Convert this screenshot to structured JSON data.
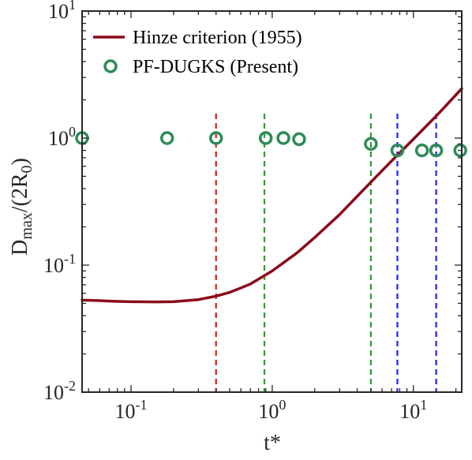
{
  "chart_data": {
    "type": "line",
    "xscale": "log",
    "yscale": "log",
    "xlim": [
      0.045,
      22
    ],
    "ylim": [
      0.01,
      10
    ],
    "xlabel": "t*",
    "ylabel": {
      "base": "D",
      "sub1": "max",
      "mid": "/(2R",
      "sub2": "0",
      "end": ")"
    },
    "x_ticks": [
      {
        "value": 0.1,
        "base": "10",
        "exp": "-1"
      },
      {
        "value": 1,
        "base": "10",
        "exp": "0"
      },
      {
        "value": 10,
        "base": "10",
        "exp": "1"
      }
    ],
    "y_ticks": [
      {
        "value": 0.01,
        "base": "10",
        "exp": "-2"
      },
      {
        "value": 0.1,
        "base": "10",
        "exp": "-1"
      },
      {
        "value": 1,
        "base": "10",
        "exp": "0"
      },
      {
        "value": 10,
        "base": "10",
        "exp": "1"
      }
    ],
    "legend_position": "top-left",
    "series": [
      {
        "name": "Hinze criterion (1955)",
        "kind": "line",
        "color": "#8B0A1A",
        "x": [
          0.045,
          0.06,
          0.08,
          0.1,
          0.15,
          0.2,
          0.3,
          0.4,
          0.5,
          0.7,
          1.0,
          1.5,
          2.0,
          3.0,
          5.0,
          7.0,
          10.0,
          15.0,
          22.0
        ],
        "y": [
          0.053,
          0.0525,
          0.0518,
          0.0515,
          0.0513,
          0.0515,
          0.0535,
          0.057,
          0.061,
          0.071,
          0.09,
          0.125,
          0.165,
          0.25,
          0.45,
          0.66,
          0.98,
          1.55,
          2.45
        ]
      },
      {
        "name": "PF-DUGKS (Present)",
        "kind": "scatter",
        "color": "#2E8B57",
        "x": [
          0.045,
          0.18,
          0.4,
          0.9,
          1.2,
          1.55,
          5.0,
          7.7,
          11.5,
          14.5,
          21.5
        ],
        "y": [
          1.0,
          1.0,
          1.0,
          1.0,
          1.0,
          0.98,
          0.9,
          0.8,
          0.8,
          0.8,
          0.8
        ]
      }
    ],
    "vlines": [
      {
        "x": 0.4,
        "color": "#E31A1C"
      },
      {
        "x": 0.88,
        "color": "#2CA02C"
      },
      {
        "x": 5.0,
        "color": "#2CA02C"
      },
      {
        "x": 7.7,
        "color": "#1F1FFF"
      },
      {
        "x": 14.5,
        "color": "#1F1FFF"
      }
    ]
  }
}
